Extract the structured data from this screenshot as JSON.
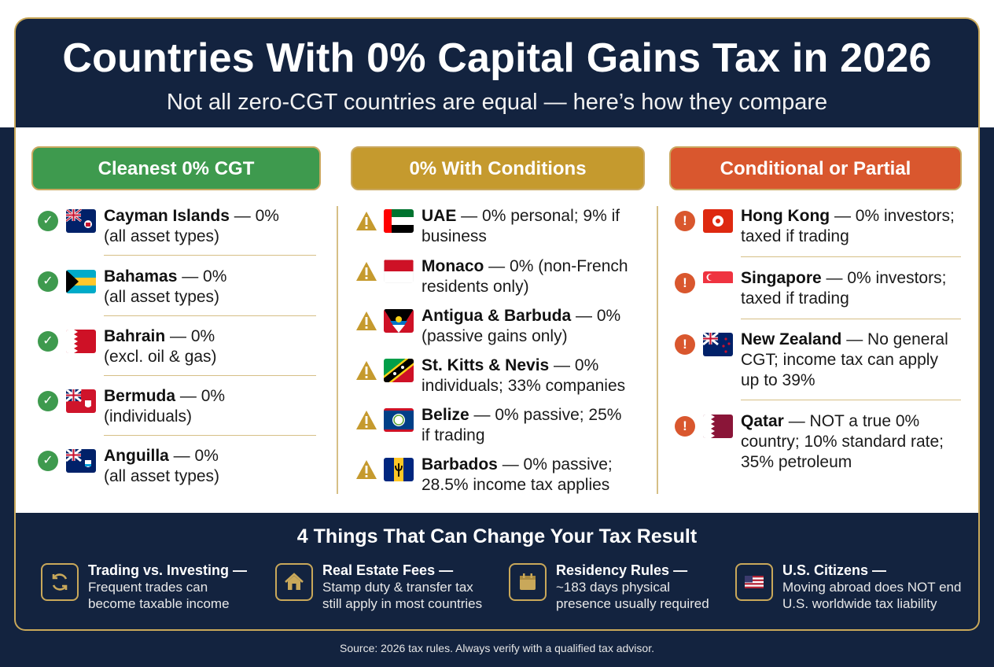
{
  "header": {
    "title": "Countries With 0% Capital Gains Tax in 2026",
    "subtitle": "Not all zero-CGT countries are equal — here’s how they compare"
  },
  "columns": [
    {
      "heading": "Cleanest 0% CGT",
      "status_icon": "check-icon",
      "color": "#3e9a4e",
      "items": [
        {
          "country": "Cayman Islands",
          "line1": " — 0%",
          "line2": "(all asset types)"
        },
        {
          "country": "Bahamas",
          "line1": " — 0%",
          "line2": "(all asset types)"
        },
        {
          "country": "Bahrain",
          "line1": " — 0%",
          "line2": "(excl. oil & gas)"
        },
        {
          "country": "Bermuda",
          "line1": " — 0%",
          "line2": "(individuals)"
        },
        {
          "country": "Anguilla",
          "line1": " — 0%",
          "line2": "(all asset types)"
        }
      ]
    },
    {
      "heading": "0% With Conditions",
      "status_icon": "warning-icon",
      "color": "#c59a2e",
      "items": [
        {
          "country": "UAE",
          "line1": " — 0% personal; 9% if",
          "line2": "business"
        },
        {
          "country": "Monaco",
          "line1": " — 0% (non-French",
          "line2": "residents only)"
        },
        {
          "country": "Antigua & Barbuda",
          "line1": " — 0%",
          "line2": "(passive gains only)"
        },
        {
          "country": "St. Kitts & Nevis",
          "line1": " — 0%",
          "line2": "individuals; 33% companies"
        },
        {
          "country": "Belize",
          "line1": " — 0% passive; 25%",
          "line2": "if trading"
        },
        {
          "country": "Barbados",
          "line1": " — 0% passive;",
          "line2": "28.5% income tax applies"
        }
      ]
    },
    {
      "heading": "Conditional or Partial",
      "status_icon": "alert-icon",
      "color": "#d9572e",
      "items": [
        {
          "country": "Hong Kong",
          "line1": " — 0% investors;",
          "line2": "taxed if trading"
        },
        {
          "country": "Singapore",
          "line1": " — 0% investors;",
          "line2": "taxed if trading"
        },
        {
          "country": "New Zealand",
          "line1": " — No general",
          "line2": "CGT; income tax can apply",
          "line3": "up to 39%"
        },
        {
          "country": "Qatar",
          "line1": " — NOT a true 0%",
          "line2": "country; 10% standard rate;",
          "line3": "35% petroleum"
        }
      ]
    }
  ],
  "bottom": {
    "title": "4 Things That Can Change Your Tax Result",
    "tips": [
      {
        "icon": "refresh-icon",
        "title": "Trading vs. Investing —",
        "line1": "Frequent trades can",
        "line2": "become taxable income"
      },
      {
        "icon": "house-icon",
        "title": "Real Estate Fees —",
        "line1": "Stamp duty & transfer tax",
        "line2": "still apply in most countries"
      },
      {
        "icon": "calendar-icon",
        "title": "Residency Rules —",
        "line1": "~183 days physical",
        "line2": "presence usually required"
      },
      {
        "icon": "us-flag-icon",
        "title": "U.S. Citizens —",
        "line1": "Moving abroad does NOT end",
        "line2": "U.S. worldwide tax liability"
      }
    ]
  },
  "source": "Source: 2026 tax rules. Always verify with a qualified tax advisor."
}
